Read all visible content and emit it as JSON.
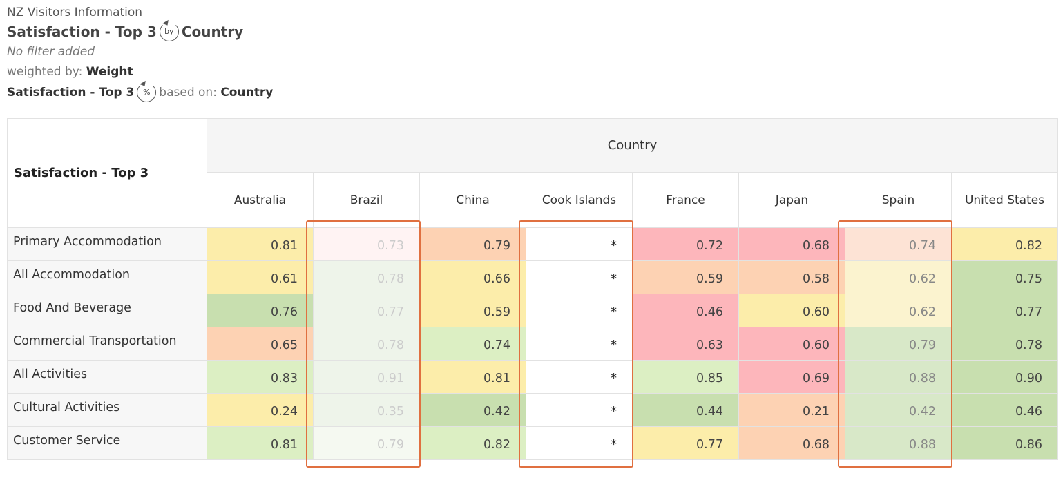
{
  "header": {
    "dataset": "NZ Visitors Information",
    "title_left": "Satisfaction - Top 3",
    "title_icon": "by",
    "title_right": "Country",
    "filter": "No filter added",
    "weighted_label": "weighted by:",
    "weighted_value": "Weight",
    "pct_left": "Satisfaction - Top 3",
    "pct_icon": "%",
    "pct_based": "based on:",
    "pct_value": "Country"
  },
  "table": {
    "corner": "Satisfaction - Top 3",
    "group_header": "Country",
    "columns": [
      "Australia",
      "Brazil",
      "China",
      "Cook Islands",
      "France",
      "Japan",
      "Spain",
      "United States"
    ],
    "rows": [
      {
        "label": "Primary Accommodation",
        "values": [
          "0.81",
          "0.73",
          "0.79",
          "*",
          "0.72",
          "0.68",
          "0.74",
          "0.82"
        ]
      },
      {
        "label": "All Accommodation",
        "values": [
          "0.61",
          "0.78",
          "0.66",
          "*",
          "0.59",
          "0.58",
          "0.62",
          "0.75"
        ]
      },
      {
        "label": "Food And Beverage",
        "values": [
          "0.76",
          "0.77",
          "0.59",
          "*",
          "0.46",
          "0.60",
          "0.62",
          "0.77"
        ]
      },
      {
        "label": "Commercial Transportation",
        "values": [
          "0.65",
          "0.78",
          "0.74",
          "*",
          "0.63",
          "0.60",
          "0.79",
          "0.78"
        ]
      },
      {
        "label": "All Activities",
        "values": [
          "0.83",
          "0.91",
          "0.81",
          "*",
          "0.85",
          "0.69",
          "0.88",
          "0.90"
        ]
      },
      {
        "label": "Cultural Activities",
        "values": [
          "0.24",
          "0.35",
          "0.42",
          "*",
          "0.44",
          "0.21",
          "0.42",
          "0.46"
        ]
      },
      {
        "label": "Customer Service",
        "values": [
          "0.81",
          "0.79",
          "0.82",
          "*",
          "0.77",
          "0.68",
          "0.88",
          "0.86"
        ]
      }
    ],
    "colors": [
      [
        "#fcedaa",
        "#fff3f3",
        "#fdd2b3",
        "#ffffff",
        "#fdb6bb",
        "#fdb6bb",
        "#fde3d5",
        "#fcedaa"
      ],
      [
        "#fcedaa",
        "#eef4ea",
        "#fcedaa",
        "#ffffff",
        "#fdd2b3",
        "#fdd2b3",
        "#fbf3cf",
        "#c8dfaf"
      ],
      [
        "#c8dfaf",
        "#eef4ea",
        "#fcedaa",
        "#ffffff",
        "#fdb6bb",
        "#fcedaa",
        "#fbf3cf",
        "#c8dfaf"
      ],
      [
        "#fdd2b3",
        "#eef4ea",
        "#dcefc3",
        "#ffffff",
        "#fdb6bb",
        "#fdb6bb",
        "#d8e8c8",
        "#c8dfaf"
      ],
      [
        "#dcefc3",
        "#eef4ea",
        "#fcedaa",
        "#ffffff",
        "#dcefc3",
        "#fdb6bb",
        "#d8e8c8",
        "#c8dfaf"
      ],
      [
        "#fcedaa",
        "#eef4ea",
        "#c8dfaf",
        "#ffffff",
        "#c8dfaf",
        "#fdd2b3",
        "#d8e8c8",
        "#c8dfaf"
      ],
      [
        "#dcefc3",
        "#f5f9f1",
        "#dcefc3",
        "#ffffff",
        "#fcedaa",
        "#fdd2b3",
        "#d8e8c8",
        "#c8dfaf"
      ]
    ],
    "highlight_color": "#e07040",
    "highlighted_columns": [
      "Brazil",
      "Cook Islands",
      "Spain"
    ]
  }
}
